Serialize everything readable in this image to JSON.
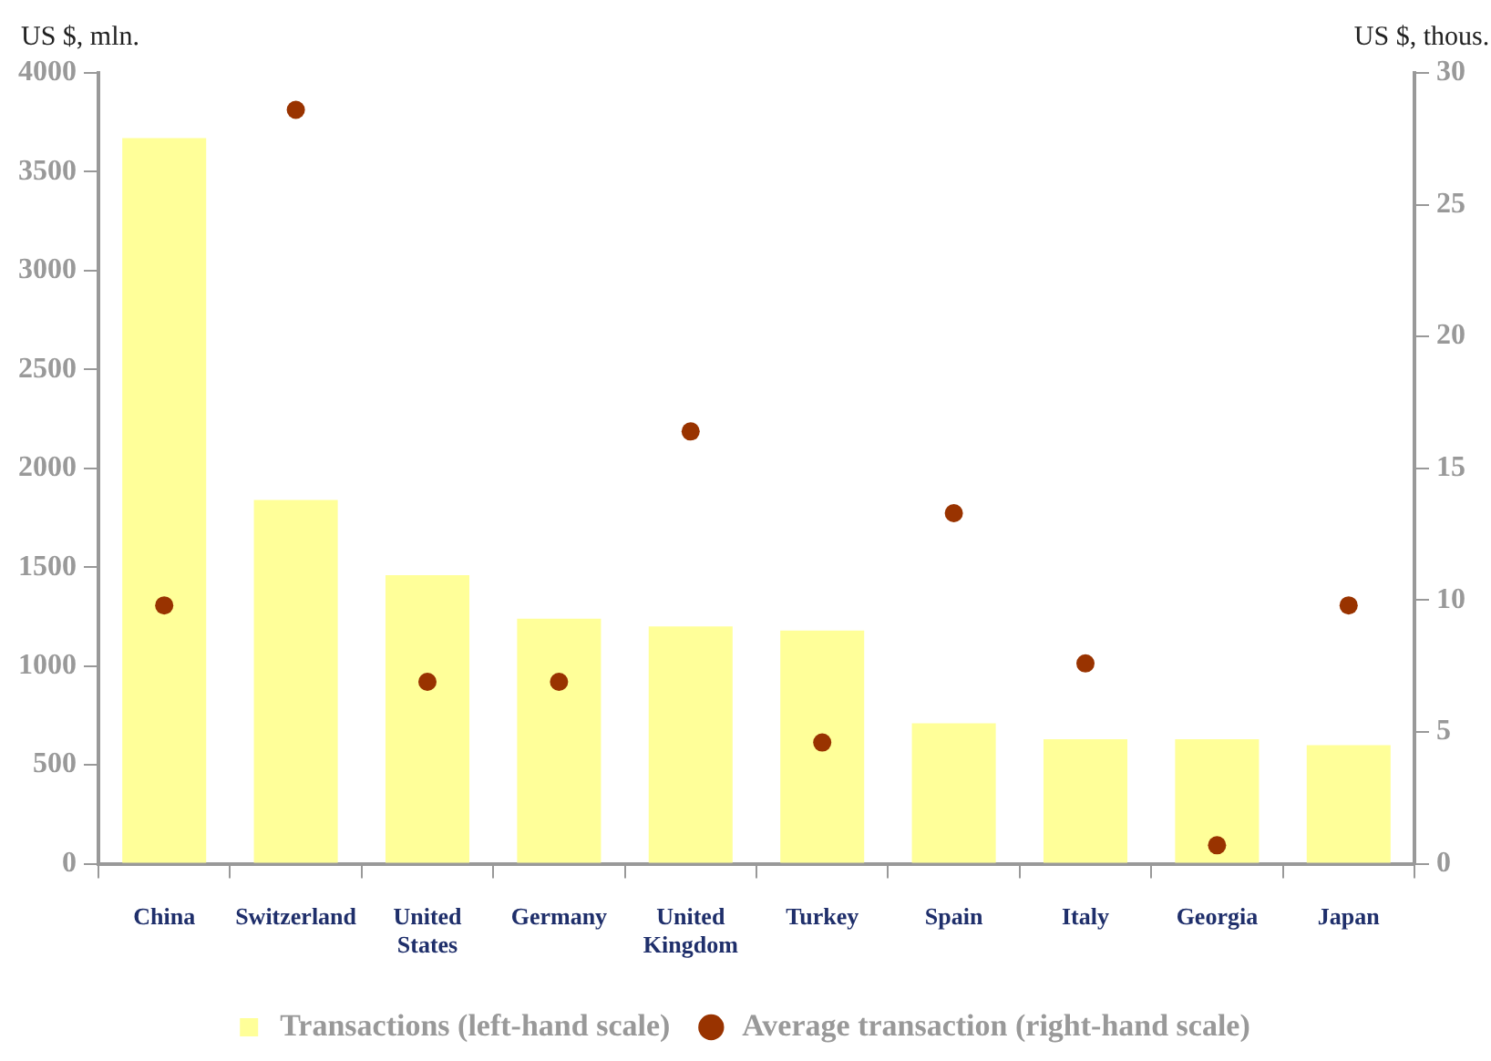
{
  "chart_data": {
    "type": "bar",
    "categories": [
      "China",
      "Switzerland",
      "United States",
      "Germany",
      "United Kingdom",
      "Turkey",
      "Spain",
      "Italy",
      "Georgia",
      "Japan"
    ],
    "ylabel": "US $, mln.",
    "y2label": "US $, thous.",
    "series": [
      {
        "name": "Transactions (left-hand scale)",
        "color": "#ffff99",
        "values": [
          3670,
          1840,
          1460,
          1240,
          1200,
          1180,
          710,
          630,
          630,
          600
        ]
      },
      {
        "name": "Average transaction (right-hand scale)",
        "type": "scatter",
        "axis": "y2",
        "color": "#993300",
        "values": [
          9.8,
          28.6,
          6.9,
          6.9,
          16.4,
          4.6,
          13.3,
          7.6,
          0.7,
          9.8
        ]
      }
    ],
    "ylim": [
      0,
      4000
    ],
    "yticks": [
      0,
      500,
      1000,
      1500,
      2000,
      2500,
      3000,
      3500,
      4000
    ],
    "y2lim": [
      0,
      30
    ],
    "y2ticks": [
      0,
      5,
      10,
      15,
      20,
      25,
      30
    ],
    "grid": false,
    "legend": "bottom",
    "marker": "circle"
  }
}
